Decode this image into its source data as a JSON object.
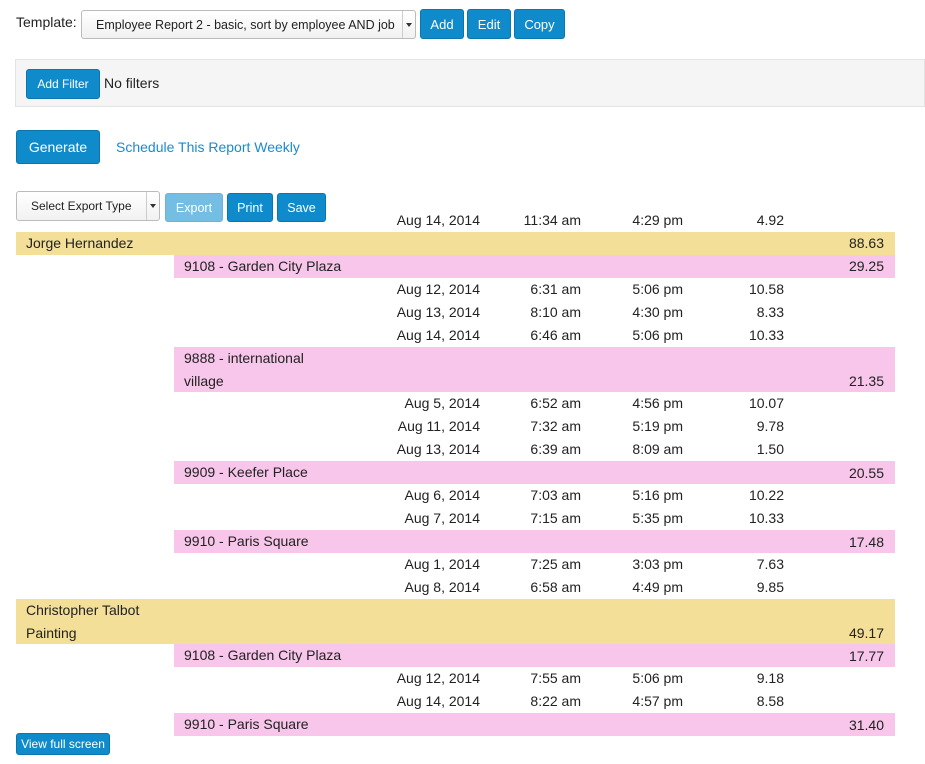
{
  "toolbar": {
    "template_label": "Template:",
    "template_value": "Employee Report 2 - basic, sort by employee AND job",
    "add": "Add",
    "edit": "Edit",
    "copy": "Copy"
  },
  "filters": {
    "add_filter": "Add Filter",
    "status": "No filters"
  },
  "actions": {
    "generate": "Generate",
    "schedule": "Schedule This Report Weekly",
    "export_type": "Select Export Type",
    "export": "Export",
    "print": "Print",
    "save": "Save"
  },
  "report": {
    "partial_top": [
      "Aug 14, 2014",
      "11:34 am",
      "4:29 pm",
      "4.92"
    ],
    "employees": [
      {
        "name": "Jorge Hernandez",
        "total": "88.63",
        "jobs": [
          {
            "name": "9108 - Garden City Plaza",
            "total": "29.25",
            "entries": [
              [
                "Aug 12, 2014",
                "6:31 am",
                "5:06 pm",
                "10.58"
              ],
              [
                "Aug 13, 2014",
                "8:10 am",
                "4:30 pm",
                "8.33"
              ],
              [
                "Aug 14, 2014",
                "6:46 am",
                "5:06 pm",
                "10.33"
              ]
            ]
          },
          {
            "name": "9888 - international village",
            "total": "21.35",
            "entries": [
              [
                "Aug 5, 2014",
                "6:52 am",
                "4:56 pm",
                "10.07"
              ],
              [
                "Aug 11, 2014",
                "7:32 am",
                "5:19 pm",
                "9.78"
              ],
              [
                "Aug 13, 2014",
                "6:39 am",
                "8:09 am",
                "1.50"
              ]
            ]
          },
          {
            "name": "9909 - Keefer Place",
            "total": "20.55",
            "entries": [
              [
                "Aug 6, 2014",
                "7:03 am",
                "5:16 pm",
                "10.22"
              ],
              [
                "Aug 7, 2014",
                "7:15 am",
                "5:35 pm",
                "10.33"
              ]
            ]
          },
          {
            "name": "9910 - Paris Square",
            "total": "17.48",
            "entries": [
              [
                "Aug 1, 2014",
                "7:25 am",
                "3:03 pm",
                "7.63"
              ],
              [
                "Aug 8, 2014",
                "6:58 am",
                "4:49 pm",
                "9.85"
              ]
            ]
          }
        ]
      },
      {
        "name": "Christopher Talbot Painting",
        "total": "49.17",
        "jobs": [
          {
            "name": "9108 - Garden City Plaza",
            "total": "17.77",
            "entries": [
              [
                "Aug 12, 2014",
                "7:55 am",
                "5:06 pm",
                "9.18"
              ],
              [
                "Aug 14, 2014",
                "8:22 am",
                "4:57 pm",
                "8.58"
              ]
            ]
          },
          {
            "name": "9910 - Paris Square",
            "total": "31.40",
            "entries": []
          }
        ]
      }
    ]
  },
  "footer": {
    "view_full_screen": "View full screen"
  }
}
